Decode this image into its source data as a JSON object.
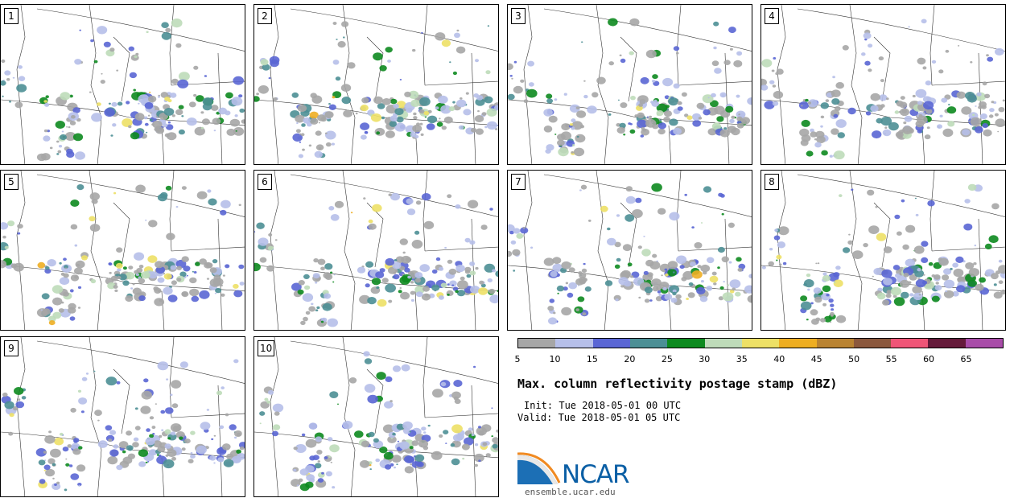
{
  "panels": [
    {
      "label": "1"
    },
    {
      "label": "2"
    },
    {
      "label": "3"
    },
    {
      "label": "4"
    },
    {
      "label": "5"
    },
    {
      "label": "6"
    },
    {
      "label": "7"
    },
    {
      "label": "8"
    },
    {
      "label": "9"
    },
    {
      "label": "10"
    }
  ],
  "colorbar": {
    "colors": [
      "#a6a6a6",
      "#b6bfe9",
      "#5a66d4",
      "#4c8f95",
      "#0d8a1f",
      "#bedbb9",
      "#ede066",
      "#eeae22",
      "#b98332",
      "#8b583d",
      "#ef5577",
      "#651a3a",
      "#a84ca8"
    ],
    "ticks": [
      "5",
      "10",
      "15",
      "20",
      "25",
      "30",
      "35",
      "40",
      "45",
      "50",
      "55",
      "60",
      "65"
    ]
  },
  "title": "Max. column reflectivity postage stamp (dBZ)",
  "init": "Init: Tue 2018-05-01 00 UTC",
  "valid": "Valid: Tue 2018-05-01 05 UTC",
  "logo": {
    "text": "NCAR",
    "url": "ensemble.ucar.edu",
    "icon": "ncar-logo-icon"
  }
}
